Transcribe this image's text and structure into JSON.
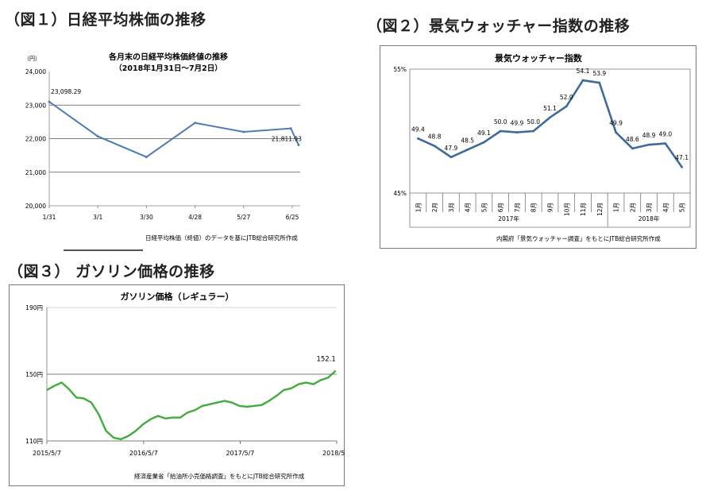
{
  "figures": [
    {
      "heading": "（図１）日経平均株価の推移",
      "chart_data": {
        "type": "line",
        "title": "各月末の日経平均株価終値の推移",
        "subtitle": "（2018年1月31日～7月2日）",
        "unit_label": "（円）",
        "x_tick_labels": [
          "1/31",
          "3/1",
          "3/30",
          "4/28",
          "5/27",
          "6/25"
        ],
        "y_tick_labels": [
          "24,000",
          "23,000",
          "22,000",
          "21,000",
          "20,000"
        ],
        "ylim": [
          20000,
          24000
        ],
        "series": [
          {
            "values": [
              23098.29,
              22068,
              21454,
              22468,
              22202,
              22305,
              21811.93
            ]
          }
        ],
        "data_labels": [
          "23,098.29",
          "21,811.93"
        ],
        "source": "日経平均株価（終値）のデータを基にJTB総合研究所作成",
        "line_color": "#4d7cb6"
      }
    },
    {
      "heading": "（図２）景気ウォッチャー指数の推移",
      "chart_data": {
        "type": "line",
        "title": "景気ウォッチャー指数",
        "categories": [
          "1月",
          "2月",
          "3月",
          "4月",
          "5月",
          "6月",
          "7月",
          "8月",
          "9月",
          "10月",
          "11月",
          "12月",
          "1月",
          "2月",
          "3月",
          "4月",
          "5月"
        ],
        "year_labels": [
          "2017年",
          "2018年"
        ],
        "series": [
          {
            "values": [
              49.4,
              48.8,
              47.9,
              48.5,
              49.1,
              50.0,
              49.9,
              50.0,
              51.1,
              52.0,
              54.1,
              53.9,
              49.9,
              48.6,
              48.9,
              49.0,
              47.1
            ]
          }
        ],
        "data_labels": [
          "49.4",
          "48.8",
          "47.9",
          "48.5",
          "49.1",
          "50.0",
          "49.9",
          "50.0",
          "51.1",
          "52.0",
          "54.1",
          "53.9",
          "49.9",
          "48.6",
          "48.9",
          "49.0",
          "47.1"
        ],
        "y_tick_labels": [
          "55%",
          "45%"
        ],
        "ylim": [
          45,
          55
        ],
        "source": "内閣府「景気ウォッチャー調査」をもとにJTB総合研究所作成",
        "line_color": "#3f6a9c"
      }
    },
    {
      "heading": "（図３） ガソリン価格の推移",
      "chart_data": {
        "type": "line",
        "title": "ガソリン価格（レギュラー）",
        "x_tick_labels": [
          "2015/5/7",
          "2016/5/7",
          "2017/5/7",
          "2018/5/7"
        ],
        "y_tick_labels": [
          "190円",
          "150円",
          "110円"
        ],
        "ylim": [
          110,
          190
        ],
        "series": [
          {
            "x": [
              "2015-05-07",
              "2015-06-04",
              "2015-07-02",
              "2015-07-30",
              "2015-08-27",
              "2015-09-24",
              "2015-10-22",
              "2015-11-19",
              "2015-12-17",
              "2016-01-14",
              "2016-02-11",
              "2016-03-10",
              "2016-04-07",
              "2016-05-05",
              "2016-06-02",
              "2016-06-30",
              "2016-07-28",
              "2016-08-25",
              "2016-09-22",
              "2016-10-20",
              "2016-11-17",
              "2016-12-15",
              "2017-01-12",
              "2017-02-09",
              "2017-03-09",
              "2017-04-06",
              "2017-05-04",
              "2017-06-01",
              "2017-06-29",
              "2017-07-27",
              "2017-08-24",
              "2017-09-21",
              "2017-10-19",
              "2017-11-16",
              "2017-12-14",
              "2018-01-11",
              "2018-02-08",
              "2018-03-08",
              "2018-04-05",
              "2018-05-03"
            ],
            "values": [
              140.5,
              143,
              145,
              141,
              136,
              135.5,
              133,
              126,
              116,
              112,
              111,
              113,
              116,
              120,
              123,
              125,
              123.5,
              124,
              124,
              127,
              128.5,
              131,
              132,
              133,
              134,
              133,
              131,
              130.5,
              131,
              131.5,
              134,
              137,
              140.5,
              141.5,
              144,
              145,
              144,
              146.5,
              148,
              152.1
            ]
          }
        ],
        "data_labels": [
          "152.1"
        ],
        "source": "経済産業省「給油所小売価格調査」をもとにJTB総合研究所作成",
        "line_color": "#3fad3c"
      }
    }
  ]
}
